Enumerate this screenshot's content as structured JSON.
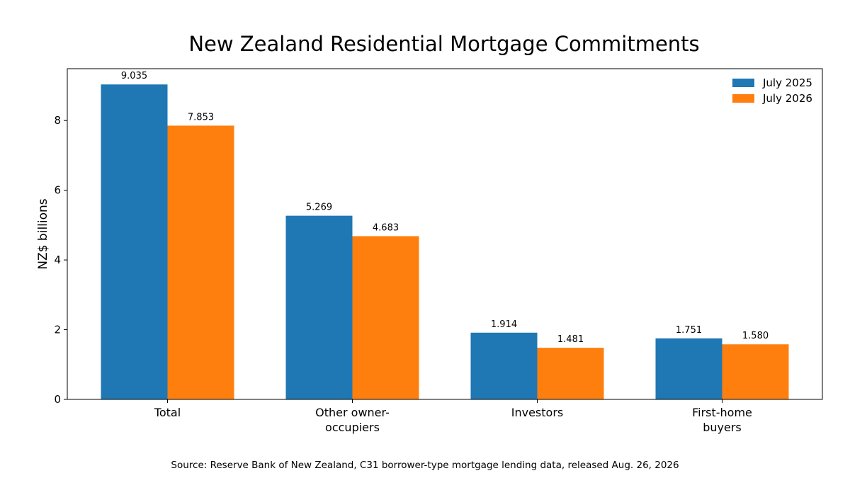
{
  "chart_data": {
    "type": "bar",
    "title": "New Zealand Residential Mortgage Commitments",
    "xlabel": "",
    "ylabel": "NZ$ billions",
    "categories": [
      [
        "Total"
      ],
      [
        "Other owner-",
        "occupiers"
      ],
      [
        "Investors"
      ],
      [
        "First-home",
        "buyers"
      ]
    ],
    "series": [
      {
        "name": "July 2025",
        "color": "#1f77b4",
        "values": [
          9.035,
          5.269,
          1.914,
          1.751
        ],
        "labels": [
          "9.035",
          "5.269",
          "1.914",
          "1.751"
        ]
      },
      {
        "name": "July 2026",
        "color": "#ff7f0e",
        "values": [
          7.853,
          4.683,
          1.481,
          1.58
        ],
        "labels": [
          "7.853",
          "4.683",
          "1.481",
          "1.580"
        ]
      }
    ],
    "ylim": [
      0,
      9.487
    ],
    "yticks": [
      0,
      2,
      4,
      6,
      8
    ],
    "grid": false,
    "legend_position": "top-right"
  },
  "footer": {
    "source": "Source: Reserve Bank of New Zealand, C31 borrower-type mortgage lending data, released Aug. 26, 2026"
  }
}
